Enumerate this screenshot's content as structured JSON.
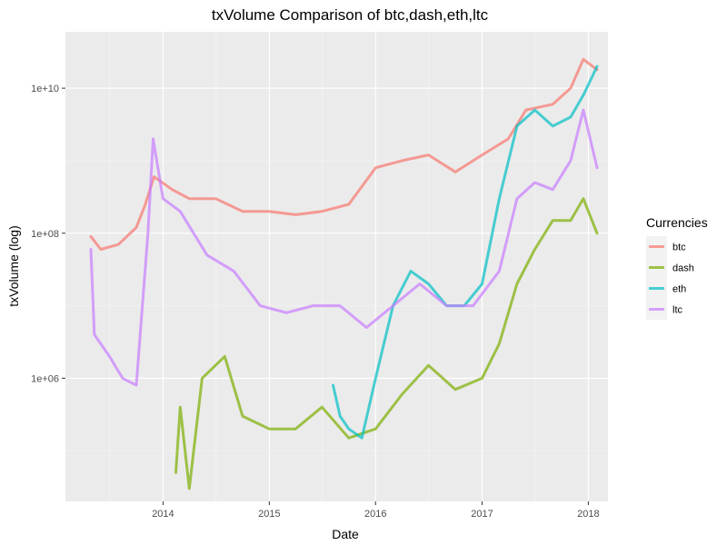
{
  "chart_data": {
    "type": "line",
    "title": "txVolume Comparison of  btc,dash,eth,ltc",
    "xlabel": "Date",
    "ylabel": "txVolume (log)",
    "x_ticks": [
      "2014",
      "2015",
      "2016",
      "2017",
      "2018"
    ],
    "y_ticks": [
      "1e+06",
      "1e+08",
      "1e+10"
    ],
    "y_scale": "log10",
    "xlim": [
      "2013-04-28",
      "2018-01-31"
    ],
    "ylim": [
      20000.0,
      60000000000.0
    ],
    "grid": true,
    "legend": {
      "title": "Currencies",
      "position": "right"
    },
    "series": [
      {
        "name": "btc",
        "color": "#F8766D",
        "points": [
          [
            "2013-04-28",
            90000000.0
          ],
          [
            "2013-06-01",
            60000000.0
          ],
          [
            "2013-08-01",
            70000000.0
          ],
          [
            "2013-10-01",
            120000000.0
          ],
          [
            "2013-11-01",
            250000000.0
          ],
          [
            "2013-12-01",
            600000000.0
          ],
          [
            "2014-02-01",
            400000000.0
          ],
          [
            "2014-04-01",
            300000000.0
          ],
          [
            "2014-07-01",
            300000000.0
          ],
          [
            "2014-10-01",
            200000000.0
          ],
          [
            "2015-01-01",
            200000000.0
          ],
          [
            "2015-04-01",
            180000000.0
          ],
          [
            "2015-07-01",
            200000000.0
          ],
          [
            "2015-10-01",
            250000000.0
          ],
          [
            "2016-01-01",
            800000000.0
          ],
          [
            "2016-04-01",
            1000000000.0
          ],
          [
            "2016-07-01",
            1200000000.0
          ],
          [
            "2016-10-01",
            700000000.0
          ],
          [
            "2017-01-01",
            1200000000.0
          ],
          [
            "2017-04-01",
            2000000000.0
          ],
          [
            "2017-06-01",
            5000000000.0
          ],
          [
            "2017-09-01",
            6000000000.0
          ],
          [
            "2017-11-01",
            10000000000.0
          ],
          [
            "2017-12-15",
            25000000000.0
          ],
          [
            "2018-01-31",
            18000000000.0
          ]
        ]
      },
      {
        "name": "dash",
        "color": "#7CAE00",
        "points": [
          [
            "2014-02-14",
            50000.0
          ],
          [
            "2014-03-01",
            400000.0
          ],
          [
            "2014-04-01",
            30000.0
          ],
          [
            "2014-05-15",
            1000000.0
          ],
          [
            "2014-08-01",
            2000000.0
          ],
          [
            "2014-10-01",
            300000.0
          ],
          [
            "2015-01-01",
            200000.0
          ],
          [
            "2015-04-01",
            200000.0
          ],
          [
            "2015-07-01",
            400000.0
          ],
          [
            "2015-10-01",
            150000.0
          ],
          [
            "2016-01-01",
            200000.0
          ],
          [
            "2016-04-01",
            600000.0
          ],
          [
            "2016-07-01",
            1500000.0
          ],
          [
            "2016-10-01",
            700000.0
          ],
          [
            "2017-01-01",
            1000000.0
          ],
          [
            "2017-03-01",
            3000000.0
          ],
          [
            "2017-05-01",
            20000000.0
          ],
          [
            "2017-07-01",
            60000000.0
          ],
          [
            "2017-09-01",
            150000000.0
          ],
          [
            "2017-11-01",
            150000000.0
          ],
          [
            "2017-12-15",
            300000000.0
          ],
          [
            "2018-01-31",
            100000000.0
          ]
        ]
      },
      {
        "name": "eth",
        "color": "#00BFC4",
        "points": [
          [
            "2015-08-08",
            800000.0
          ],
          [
            "2015-09-01",
            300000.0
          ],
          [
            "2015-10-01",
            200000.0
          ],
          [
            "2015-11-15",
            150000.0
          ],
          [
            "2016-01-01",
            1000000.0
          ],
          [
            "2016-03-01",
            10000000.0
          ],
          [
            "2016-05-01",
            30000000.0
          ],
          [
            "2016-07-01",
            20000000.0
          ],
          [
            "2016-09-01",
            10000000.0
          ],
          [
            "2016-11-01",
            10000000.0
          ],
          [
            "2017-01-01",
            20000000.0
          ],
          [
            "2017-03-01",
            300000000.0
          ],
          [
            "2017-05-01",
            3000000000.0
          ],
          [
            "2017-07-01",
            5000000000.0
          ],
          [
            "2017-09-01",
            3000000000.0
          ],
          [
            "2017-11-01",
            4000000000.0
          ],
          [
            "2017-12-15",
            8000000000.0
          ],
          [
            "2018-01-31",
            20000000000.0
          ]
        ]
      },
      {
        "name": "ltc",
        "color": "#C77CFF",
        "points": [
          [
            "2013-04-28",
            60000000.0
          ],
          [
            "2013-05-10",
            4000000.0
          ],
          [
            "2013-07-01",
            2000000.0
          ],
          [
            "2013-08-15",
            1000000.0
          ],
          [
            "2013-10-01",
            800000.0
          ],
          [
            "2013-11-10",
            100000000.0
          ],
          [
            "2013-11-28",
            2000000000.0
          ],
          [
            "2014-01-01",
            300000000.0
          ],
          [
            "2014-03-01",
            200000000.0
          ],
          [
            "2014-06-01",
            50000000.0
          ],
          [
            "2014-09-01",
            30000000.0
          ],
          [
            "2014-12-01",
            10000000.0
          ],
          [
            "2015-03-01",
            8000000.0
          ],
          [
            "2015-06-01",
            10000000.0
          ],
          [
            "2015-09-01",
            10000000.0
          ],
          [
            "2015-12-01",
            5000000.0
          ],
          [
            "2016-03-01",
            10000000.0
          ],
          [
            "2016-06-01",
            20000000.0
          ],
          [
            "2016-09-01",
            10000000.0
          ],
          [
            "2016-12-01",
            10000000.0
          ],
          [
            "2017-03-01",
            30000000.0
          ],
          [
            "2017-05-01",
            300000000.0
          ],
          [
            "2017-07-01",
            500000000.0
          ],
          [
            "2017-09-01",
            400000000.0
          ],
          [
            "2017-11-01",
            1000000000.0
          ],
          [
            "2017-12-15",
            5000000000.0
          ],
          [
            "2018-01-31",
            800000000.0
          ]
        ]
      }
    ]
  }
}
